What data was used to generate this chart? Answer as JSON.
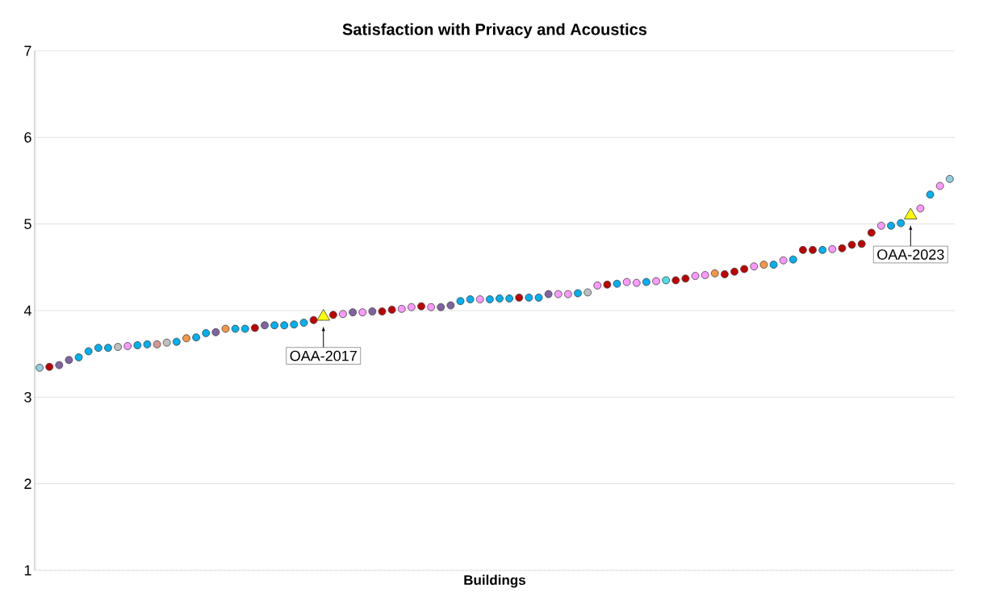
{
  "chart_data": {
    "type": "scatter",
    "title": "Satisfaction with Privacy and Acoustics",
    "xlabel": "Buildings",
    "categories": [
      null,
      null,
      null,
      null,
      null,
      null,
      null,
      null,
      null,
      null,
      null,
      null,
      null,
      null,
      null,
      null,
      null,
      null,
      null,
      null,
      null,
      null,
      null,
      null,
      null,
      null,
      null,
      null,
      null,
      null,
      null,
      null,
      null,
      null,
      null,
      null,
      null,
      null,
      null,
      null,
      null,
      null,
      null,
      null,
      null,
      null,
      null,
      null,
      null,
      null,
      null,
      null,
      null,
      null,
      null,
      null,
      null,
      null,
      null,
      null,
      null,
      null,
      null,
      null,
      null,
      null,
      null,
      null,
      null,
      null,
      null,
      null,
      null,
      null,
      null,
      null,
      null,
      null,
      null,
      null,
      null,
      null,
      null,
      null,
      null,
      null,
      null,
      null,
      null,
      null,
      null,
      null,
      null,
      null
    ],
    "ylim": [
      1,
      7
    ],
    "yticks": [
      1,
      2,
      3,
      4,
      5,
      6,
      7
    ],
    "grid": "y",
    "series": [
      {
        "marker": "circle",
        "values": [
          3.34,
          3.35,
          3.37,
          3.43,
          3.46,
          3.53,
          3.57,
          3.57,
          3.58,
          3.59,
          3.6,
          3.61,
          3.61,
          3.63,
          3.64,
          3.68,
          3.69,
          3.74,
          3.75,
          3.79,
          3.79,
          3.79,
          3.8,
          3.83,
          3.83,
          3.83,
          3.84,
          3.86,
          3.89,
          null,
          3.95,
          3.96,
          3.98,
          3.98,
          3.99,
          3.99,
          4.01,
          4.02,
          4.04,
          4.05,
          4.04,
          4.04,
          4.06,
          4.11,
          4.13,
          4.13,
          4.13,
          4.14,
          4.14,
          4.15,
          4.15,
          4.15,
          4.19,
          4.19,
          4.19,
          4.2,
          4.21,
          4.29,
          4.3,
          4.31,
          4.33,
          4.32,
          4.33,
          4.34,
          4.35,
          4.35,
          4.37,
          4.4,
          4.41,
          4.43,
          4.42,
          4.45,
          4.48,
          4.51,
          4.53,
          4.53,
          4.58,
          4.59,
          4.7,
          4.7,
          4.7,
          4.71,
          4.72,
          4.76,
          4.77,
          4.9,
          4.98,
          4.98,
          5.01,
          null,
          5.18,
          5.34,
          5.44,
          5.52
        ],
        "colors": [
          "#93cddd",
          "#c00000",
          "#8064a2",
          "#8064a2",
          "#00b0f0",
          "#00b0f0",
          "#00b0f0",
          "#00b0f0",
          "#bfbfbf",
          "#ff99ff",
          "#00b0f0",
          "#00b0f0",
          "#d99694",
          "#bfbfbf",
          "#00b0f0",
          "#f79646",
          "#00b0f0",
          "#00b0f0",
          "#8064a2",
          "#f79646",
          "#00b0f0",
          "#00b0f0",
          "#c00000",
          "#8064a2",
          "#00b0f0",
          "#00b0f0",
          "#00b0f0",
          "#00b0f0",
          "#c00000",
          null,
          "#c00000",
          "#ff99ff",
          "#8064a2",
          "#ff99ff",
          "#8064a2",
          "#c00000",
          "#c00000",
          "#ff99ff",
          "#ff99ff",
          "#c00000",
          "#ff99ff",
          "#8064a2",
          "#8064a2",
          "#00b0f0",
          "#00b0f0",
          "#ff99ff",
          "#00b0f0",
          "#00b0f0",
          "#00b0f0",
          "#c00000",
          "#00b0f0",
          "#00b0f0",
          "#8064a2",
          "#ff99ff",
          "#ff99ff",
          "#00b0f0",
          "#bfbfbf",
          "#ff99ff",
          "#c00000",
          "#00b0f0",
          "#ff99ff",
          "#ff99ff",
          "#00b0f0",
          "#ff99ff",
          "#4bdde6",
          "#c00000",
          "#c00000",
          "#ff99ff",
          "#ff99ff",
          "#f79646",
          "#c00000",
          "#c00000",
          "#c00000",
          "#ff99ff",
          "#f79646",
          "#00b0f0",
          "#ff99ff",
          "#00b0f0",
          "#c00000",
          "#c00000",
          "#00b0f0",
          "#ff99ff",
          "#c00000",
          "#c00000",
          "#c00000",
          "#c00000",
          "#ff99ff",
          "#00b0f0",
          "#00b0f0",
          null,
          "#ff99ff",
          "#00b0f0",
          "#ff99ff",
          "#93cddd"
        ]
      },
      {
        "marker": "triangle",
        "color": "#ffff00",
        "values": [
          null,
          null,
          null,
          null,
          null,
          null,
          null,
          null,
          null,
          null,
          null,
          null,
          null,
          null,
          null,
          null,
          null,
          null,
          null,
          null,
          null,
          null,
          null,
          null,
          null,
          null,
          null,
          null,
          null,
          3.93,
          null,
          null,
          null,
          null,
          null,
          null,
          null,
          null,
          null,
          null,
          null,
          null,
          null,
          null,
          null,
          null,
          null,
          null,
          null,
          null,
          null,
          null,
          null,
          null,
          null,
          null,
          null,
          null,
          null,
          null,
          null,
          null,
          null,
          null,
          null,
          null,
          null,
          null,
          null,
          null,
          null,
          null,
          null,
          null,
          null,
          null,
          null,
          null,
          null,
          null,
          null,
          null,
          null,
          null,
          null,
          null,
          null,
          null,
          null,
          5.1,
          null,
          null,
          null,
          null
        ]
      }
    ],
    "annotations": [
      {
        "text": "OAA-2017",
        "y": 3.93
      },
      {
        "text": "OAA-2023",
        "y": 5.1
      }
    ]
  }
}
